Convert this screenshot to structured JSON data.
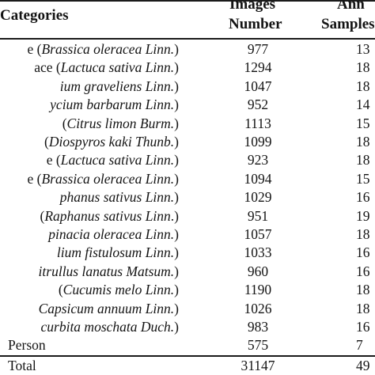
{
  "header": {
    "categories": "Categories",
    "images_line1": "Images",
    "images_line2": "Number",
    "ann_line1": "Ann",
    "ann_line2": "Samples"
  },
  "rows": [
    {
      "pre": "e (",
      "sci": "Brassica oleracea Linn.",
      "post": ")",
      "images": "977",
      "ann": "13"
    },
    {
      "pre": "ace (",
      "sci": "Lactuca sativa Linn.",
      "post": ")",
      "images": "1294",
      "ann": "18"
    },
    {
      "pre": "",
      "sci": "ium graveliens Linn.",
      "post": ")",
      "images": "1047",
      "ann": "18"
    },
    {
      "pre": "",
      "sci": "ycium barbarum Linn.",
      "post": ")",
      "images": "952",
      "ann": "14"
    },
    {
      "pre": "(",
      "sci": "Citrus limon Burm.",
      "post": ")",
      "images": "1113",
      "ann": "15"
    },
    {
      "pre": "(",
      "sci": "Diospyros kaki Thunb.",
      "post": ")",
      "images": "1099",
      "ann": "18"
    },
    {
      "pre": "e (",
      "sci": "Lactuca sativa Linn.",
      "post": ")",
      "images": "923",
      "ann": "18"
    },
    {
      "pre": "e (",
      "sci": "Brassica oleracea Linn.",
      "post": ")",
      "images": "1094",
      "ann": "15"
    },
    {
      "pre": "",
      "sci": "phanus sativus Linn.",
      "post": ")",
      "images": "1029",
      "ann": "16"
    },
    {
      "pre": "(",
      "sci": "Raphanus sativus Linn",
      "post": ".)",
      "images": "951",
      "ann": "19"
    },
    {
      "pre": "",
      "sci": "pinacia oleracea Linn.",
      "post": ")",
      "images": "1057",
      "ann": "18"
    },
    {
      "pre": "",
      "sci": "lium fistulosum Linn.",
      "post": ")",
      "images": "1033",
      "ann": "16"
    },
    {
      "pre": "",
      "sci": "itrullus lanatus Matsum.",
      "post": ")",
      "images": "960",
      "ann": "16"
    },
    {
      "pre": " (",
      "sci": "Cucumis melo Linn.",
      "post": ")",
      "images": "1190",
      "ann": "18"
    },
    {
      "pre": "",
      "sci": "Capsicum annuum Linn.",
      "post": ")",
      "images": "1026",
      "ann": "18"
    },
    {
      "pre": "",
      "sci": "curbita moschata Duch.",
      "post": ")",
      "images": "983",
      "ann": "16"
    },
    {
      "pre": "Person",
      "sci": "",
      "post": "",
      "images": "575",
      "ann": "7"
    }
  ],
  "total": {
    "label": "Total",
    "images": "31147",
    "ann": "49"
  }
}
